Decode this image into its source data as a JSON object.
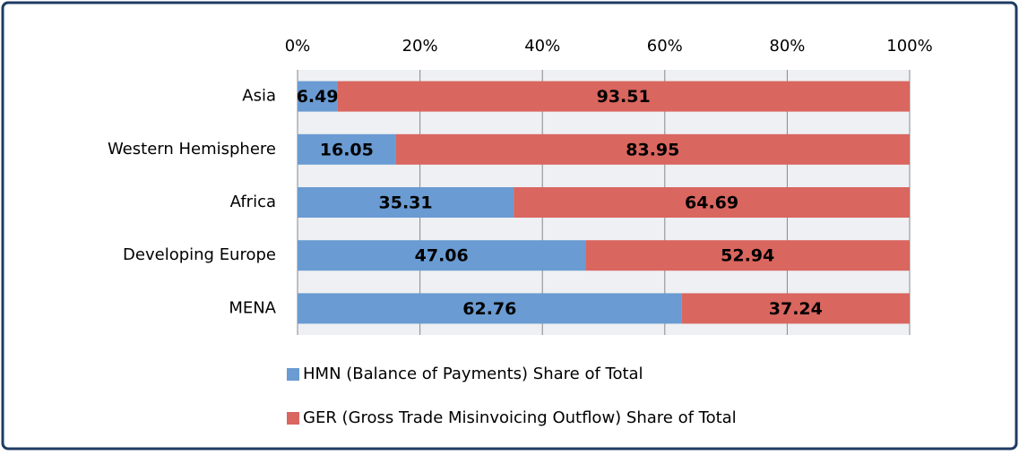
{
  "chart_data": {
    "type": "bar",
    "orientation": "horizontal",
    "stacked": true,
    "categories": [
      "Asia",
      "Western Hemisphere",
      "Africa",
      "Developing Europe",
      "MENA"
    ],
    "series": [
      {
        "name": "HMN (Balance of Payments) Share of Total",
        "color": "#6a9bd2",
        "values": [
          6.49,
          16.05,
          35.31,
          47.06,
          62.76
        ]
      },
      {
        "name": "GER (Gross Trade Misinvoicing Outflow) Share of Total",
        "color": "#d9665f",
        "values": [
          93.51,
          83.95,
          64.69,
          52.94,
          37.24
        ]
      }
    ],
    "xlim": [
      0,
      100
    ],
    "xticks": [
      {
        "value": 0,
        "label": "0%"
      },
      {
        "value": 20,
        "label": "20%"
      },
      {
        "value": 40,
        "label": "40%"
      },
      {
        "value": 60,
        "label": "60%"
      },
      {
        "value": 80,
        "label": "80%"
      },
      {
        "value": 100,
        "label": "100%"
      }
    ],
    "grid": true,
    "legend": "bottom"
  }
}
